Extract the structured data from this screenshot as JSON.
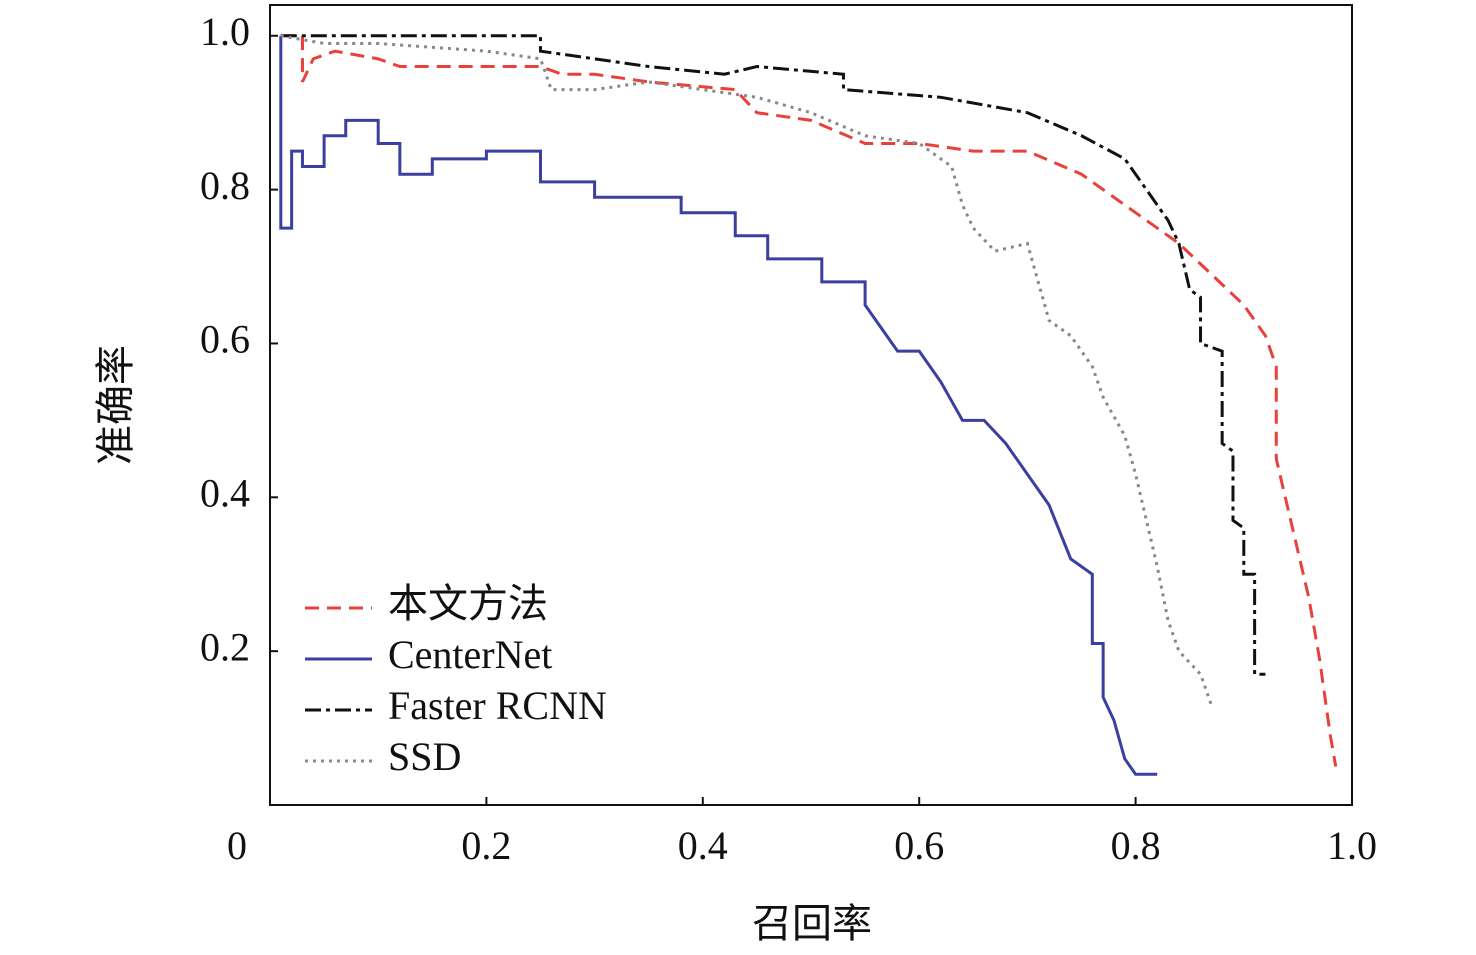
{
  "chart_data": {
    "type": "line",
    "xlabel": "召回率",
    "ylabel": "准确率",
    "xlim": [
      0,
      1
    ],
    "ylim": [
      0,
      1.04
    ],
    "xticks": [
      0,
      0.2,
      0.4,
      0.6,
      0.8,
      {
        "value": 1,
        "label": "1.0"
      }
    ],
    "yticks": [
      0.2,
      0.4,
      0.6,
      0.8,
      {
        "value": 1,
        "label": "1.0"
      }
    ],
    "legend": "lower left",
    "series": [
      {
        "name": "本文方法",
        "color": "#e8413c",
        "dash": "14 8",
        "x": [
          0.01,
          0.03,
          0.03,
          0.04,
          0.06,
          0.1,
          0.12,
          0.2,
          0.25,
          0.27,
          0.3,
          0.35,
          0.43,
          0.45,
          0.5,
          0.55,
          0.6,
          0.65,
          0.7,
          0.75,
          0.8,
          0.84,
          0.87,
          0.9,
          0.92,
          0.93,
          0.93,
          0.95,
          0.96,
          0.97,
          0.98,
          0.985
        ],
        "values": [
          1.0,
          1.0,
          0.94,
          0.97,
          0.98,
          0.97,
          0.96,
          0.96,
          0.96,
          0.95,
          0.95,
          0.94,
          0.93,
          0.9,
          0.89,
          0.86,
          0.86,
          0.85,
          0.85,
          0.82,
          0.77,
          0.73,
          0.69,
          0.65,
          0.61,
          0.57,
          0.45,
          0.33,
          0.27,
          0.19,
          0.09,
          0.05
        ]
      },
      {
        "name": "CenterNet",
        "color": "#3a3fa0",
        "dash": "none",
        "x": [
          0.01,
          0.01,
          0.02,
          0.02,
          0.03,
          0.03,
          0.05,
          0.05,
          0.07,
          0.07,
          0.1,
          0.1,
          0.12,
          0.12,
          0.15,
          0.15,
          0.2,
          0.2,
          0.25,
          0.25,
          0.3,
          0.3,
          0.38,
          0.38,
          0.43,
          0.43,
          0.46,
          0.46,
          0.51,
          0.51,
          0.55,
          0.55,
          0.58,
          0.6,
          0.62,
          0.64,
          0.66,
          0.68,
          0.7,
          0.72,
          0.74,
          0.76,
          0.76,
          0.77,
          0.77,
          0.78,
          0.79,
          0.8,
          0.82
        ],
        "values": [
          1.0,
          0.75,
          0.75,
          0.85,
          0.85,
          0.83,
          0.83,
          0.87,
          0.87,
          0.89,
          0.89,
          0.86,
          0.86,
          0.82,
          0.82,
          0.84,
          0.84,
          0.85,
          0.85,
          0.81,
          0.81,
          0.79,
          0.79,
          0.77,
          0.77,
          0.74,
          0.74,
          0.71,
          0.71,
          0.68,
          0.68,
          0.65,
          0.59,
          0.59,
          0.55,
          0.5,
          0.5,
          0.47,
          0.43,
          0.39,
          0.32,
          0.3,
          0.21,
          0.21,
          0.14,
          0.11,
          0.06,
          0.04,
          0.04
        ]
      },
      {
        "name": "Faster RCNN",
        "color": "#111111",
        "dash": "16 5 4 5",
        "x": [
          0.01,
          0.25,
          0.25,
          0.3,
          0.35,
          0.42,
          0.45,
          0.53,
          0.53,
          0.62,
          0.66,
          0.7,
          0.75,
          0.79,
          0.81,
          0.83,
          0.84,
          0.85,
          0.86,
          0.86,
          0.88,
          0.88,
          0.89,
          0.89,
          0.9,
          0.9,
          0.91,
          0.91,
          0.92
        ],
        "values": [
          1.0,
          1.0,
          0.98,
          0.97,
          0.96,
          0.95,
          0.96,
          0.95,
          0.93,
          0.92,
          0.91,
          0.9,
          0.87,
          0.84,
          0.8,
          0.76,
          0.73,
          0.67,
          0.66,
          0.6,
          0.59,
          0.47,
          0.46,
          0.37,
          0.36,
          0.3,
          0.3,
          0.17,
          0.17
        ]
      },
      {
        "name": "SSD",
        "color": "#888888",
        "dash": "3 5",
        "x": [
          0.01,
          0.05,
          0.1,
          0.2,
          0.25,
          0.26,
          0.3,
          0.35,
          0.45,
          0.5,
          0.55,
          0.6,
          0.63,
          0.64,
          0.65,
          0.67,
          0.7,
          0.71,
          0.72,
          0.74,
          0.76,
          0.77,
          0.79,
          0.8,
          0.81,
          0.82,
          0.83,
          0.84,
          0.86,
          0.87
        ],
        "values": [
          1.0,
          0.99,
          0.99,
          0.98,
          0.97,
          0.93,
          0.93,
          0.94,
          0.92,
          0.9,
          0.87,
          0.86,
          0.83,
          0.78,
          0.75,
          0.72,
          0.73,
          0.68,
          0.63,
          0.61,
          0.57,
          0.53,
          0.48,
          0.43,
          0.37,
          0.31,
          0.24,
          0.2,
          0.17,
          0.13
        ]
      }
    ]
  }
}
